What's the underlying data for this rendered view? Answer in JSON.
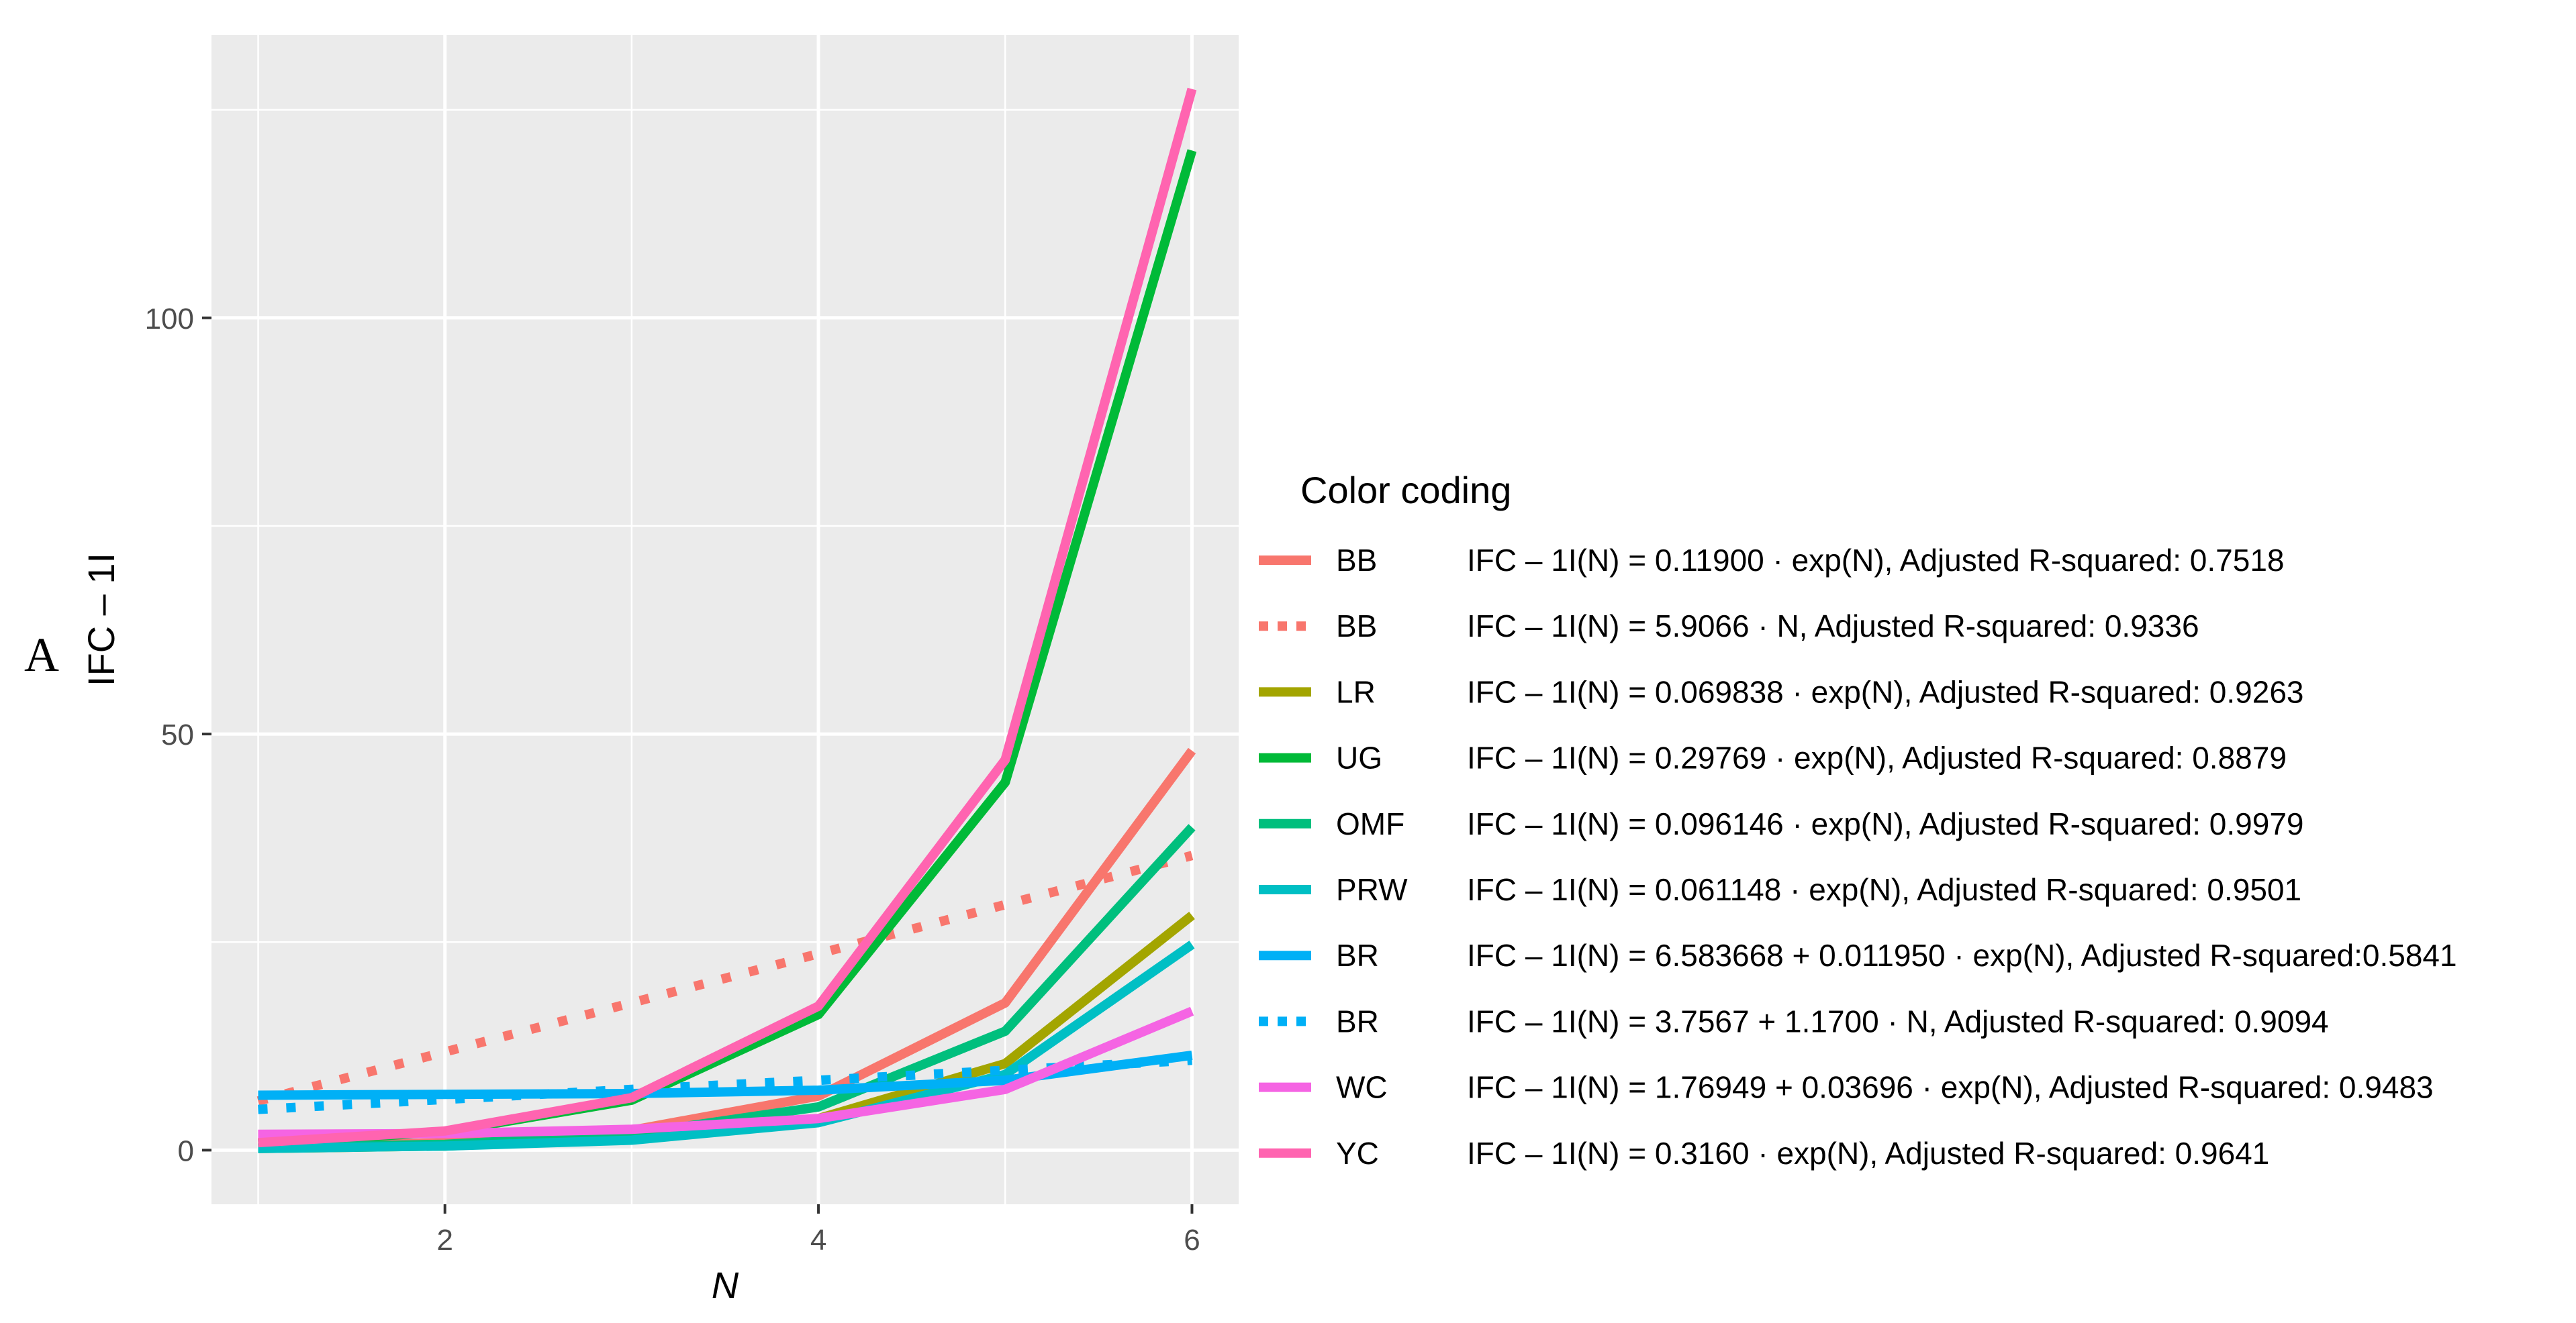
{
  "panel_label": "A",
  "colors": {
    "panel_bg": "#ebebeb",
    "grid": "#ffffff",
    "tick": "#4d4d4d"
  },
  "chart_data": {
    "type": "line",
    "title": "",
    "xlabel": "N",
    "ylabel": "IFC – 1I",
    "xlim": [
      0.75,
      6.25
    ],
    "ylim": [
      -6.5,
      134
    ],
    "x_ticks": [
      2,
      4,
      6
    ],
    "y_ticks": [
      0,
      50,
      100
    ],
    "x_tick_labels": [
      "2",
      "4",
      "6"
    ],
    "y_tick_labels": [
      "0",
      "50",
      "100"
    ],
    "grid": true,
    "legend_title": "Color coding",
    "legend_position": "right",
    "x": [
      1,
      2,
      3,
      4,
      5,
      6
    ],
    "series": [
      {
        "name": "BB",
        "color": "#f8766d",
        "dash": "solid",
        "equation": "IFC – 1I(N) = 0.11900 · exp(N), Adjusted R-squared: 0.7518",
        "values": [
          0.3,
          0.9,
          2.4,
          6.5,
          17.7,
          48.0
        ]
      },
      {
        "name": "BB",
        "color": "#f8766d",
        "dash": "dotted",
        "equation": "IFC – 1I(N) = 5.9066 · N, Adjusted R-squared: 0.9336",
        "values": [
          5.9,
          11.8,
          17.7,
          23.6,
          29.5,
          35.4
        ]
      },
      {
        "name": "LR",
        "color": "#a3a500",
        "dash": "solid",
        "equation": "IFC – 1I(N) = 0.069838 · exp(N), Adjusted R-squared: 0.9263",
        "values": [
          0.2,
          0.5,
          1.4,
          3.8,
          10.4,
          28.2
        ]
      },
      {
        "name": "UG",
        "color": "#00ba38",
        "dash": "solid",
        "equation": "IFC – 1I(N) = 0.29769 · exp(N), Adjusted R-squared: 0.8879",
        "values": [
          0.8,
          2.2,
          6.0,
          16.3,
          44.2,
          120.1
        ]
      },
      {
        "name": "OMF",
        "color": "#00bf7d",
        "dash": "solid",
        "equation": "IFC – 1I(N) = 0.096146 · exp(N), Adjusted R-squared: 0.9979",
        "values": [
          0.3,
          0.7,
          1.9,
          5.2,
          14.3,
          38.8
        ]
      },
      {
        "name": "PRW",
        "color": "#00bfc4",
        "dash": "solid",
        "equation": "IFC – 1I(N) = 0.061148 · exp(N), Adjusted R-squared: 0.9501",
        "values": [
          0.2,
          0.5,
          1.2,
          3.3,
          9.1,
          24.7
        ]
      },
      {
        "name": "BR",
        "color": "#00b0f6",
        "dash": "solid",
        "equation": "IFC – 1I(N) = 6.583668 + 0.011950 · exp(N), Adjusted R-squared:0.5841",
        "values": [
          6.6,
          6.7,
          6.8,
          7.2,
          8.4,
          11.4
        ]
      },
      {
        "name": "BR",
        "color": "#00b0f6",
        "dash": "dotted",
        "equation": "IFC – 1I(N) = 3.7567 + 1.1700 · N, Adjusted R-squared: 0.9094",
        "values": [
          4.9,
          6.1,
          7.3,
          8.4,
          9.6,
          10.8
        ]
      },
      {
        "name": "WC",
        "color": "#f564e3",
        "dash": "solid",
        "equation": "IFC – 1I(N) = 1.76949 + 0.03696 · exp(N), Adjusted R-squared: 0.9483",
        "values": [
          1.9,
          2.0,
          2.5,
          3.8,
          7.3,
          16.7
        ]
      },
      {
        "name": "YC",
        "color": "#ff64b0",
        "dash": "solid",
        "equation": "IFC – 1I(N) = 0.3160 · exp(N), Adjusted R-squared: 0.9641",
        "values": [
          0.9,
          2.3,
          6.3,
          17.3,
          46.9,
          127.5
        ]
      }
    ]
  }
}
